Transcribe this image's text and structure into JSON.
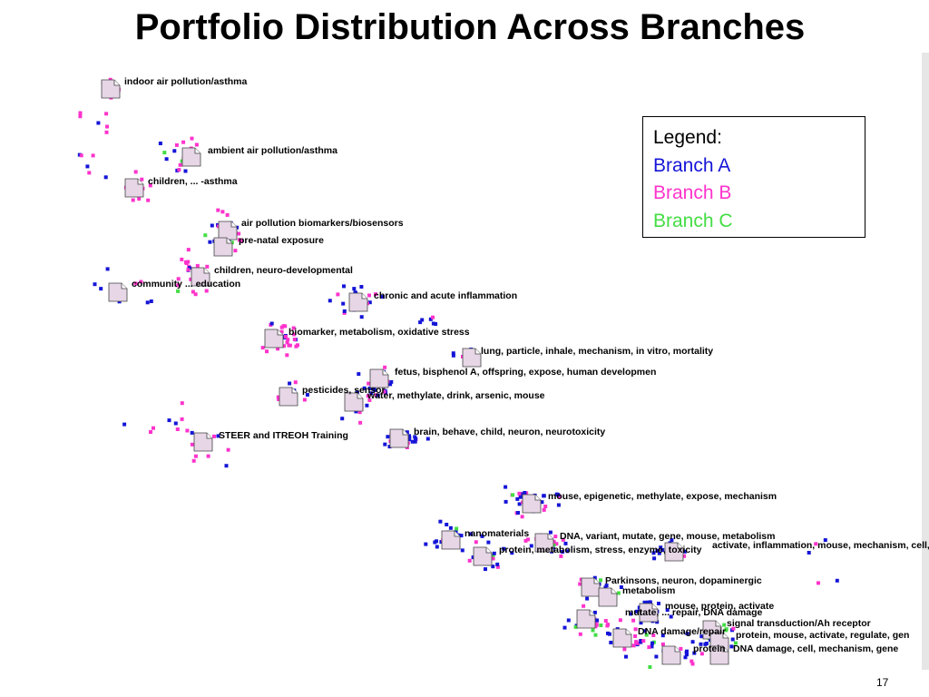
{
  "title": "Portfolio Distribution Across Branches",
  "legend": {
    "heading": "Legend:",
    "items": [
      {
        "label": "Branch A",
        "color": "#1515d8"
      },
      {
        "label": "Branch B",
        "color": "#ff33cc"
      },
      {
        "label": "Branch C",
        "color": "#44dd44"
      }
    ]
  },
  "page_number": "17",
  "topics": [
    "indoor air pollution/asthma",
    "ambient air pollution/asthma",
    "children, ... -asthma",
    "air pollution biomarkers/biosensors",
    "pre-natal exposure",
    "children, neuro-developmental",
    "community ... education",
    "chronic and acute inflammation",
    "biomarker, metabolism, oxidative stress",
    "lung, particle, inhale, mechanism, in vitro, mortality",
    "fetus, bisphenol A, offspring, expose, human developmen",
    "pesticides, sensor",
    "water, methylate, drink, arsenic, mouse",
    "brain, behave, child, neuron, neurotoxicity",
    "STEER and ITREOH Training",
    "mouse, epigenetic, methylate, expose, mechanism",
    "nanomaterials",
    "DNA, variant, mutate, gene, mouse, metabolism",
    "activate, inflammation, mouse, mechanism, cell, e",
    "protein, metabolism, stress, enzyme, toxicity",
    "Parkinsons, neuron, dopaminergic",
    "metabolism",
    "mouse, protein, activate",
    "mutate, ... repair, DNA damage",
    "signal transduction/Ah receptor",
    "DNA damage/repair",
    "protein, mouse, activate, regulate, gen",
    "protein",
    "DNA damage, cell, mechanism, gene"
  ]
}
